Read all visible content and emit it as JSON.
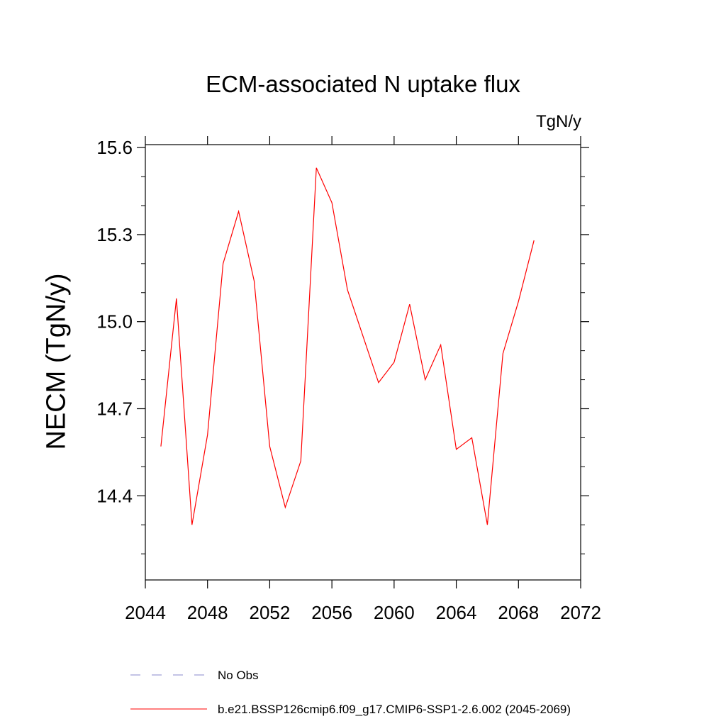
{
  "chart_data": {
    "type": "line",
    "title": "ECM-associated N uptake flux",
    "units": "TgN/y",
    "ylabel": "NECM  (TgN/y)",
    "xlabel": "",
    "xlim": [
      2044,
      2072
    ],
    "ylim": [
      14.11,
      15.61
    ],
    "x_ticks": [
      "2044",
      "2048",
      "2052",
      "2056",
      "2060",
      "2064",
      "2068",
      "2072"
    ],
    "y_ticks": [
      "14.4",
      "14.7",
      "15.0",
      "15.3",
      "15.6"
    ],
    "grid": false,
    "legend_position": "bottom-left",
    "series": [
      {
        "name": "b.e21.BSSP126cmip6.f09_g17.CMIP6-SSP1-2.6.002 (2045-2069)",
        "color": "#ff0000",
        "style": "solid",
        "x": [
          2045,
          2046,
          2047,
          2048,
          2049,
          2050,
          2051,
          2052,
          2053,
          2054,
          2055,
          2056,
          2057,
          2058,
          2059,
          2060,
          2061,
          2062,
          2063,
          2064,
          2065,
          2066,
          2067,
          2068,
          2069
        ],
        "values": [
          14.57,
          15.08,
          14.3,
          14.61,
          15.2,
          15.38,
          15.14,
          14.57,
          14.36,
          14.52,
          15.53,
          15.41,
          15.11,
          14.95,
          14.79,
          14.86,
          15.06,
          14.8,
          14.92,
          14.56,
          14.6,
          14.3,
          14.89,
          15.07,
          15.28
        ]
      }
    ],
    "legend": [
      {
        "label": "No Obs",
        "color": "#8888cc",
        "style": "dashed"
      },
      {
        "label": "b.e21.BSSP126cmip6.f09_g17.CMIP6-SSP1-2.6.002 (2045-2069)",
        "color": "#ff0000",
        "style": "solid"
      }
    ]
  }
}
